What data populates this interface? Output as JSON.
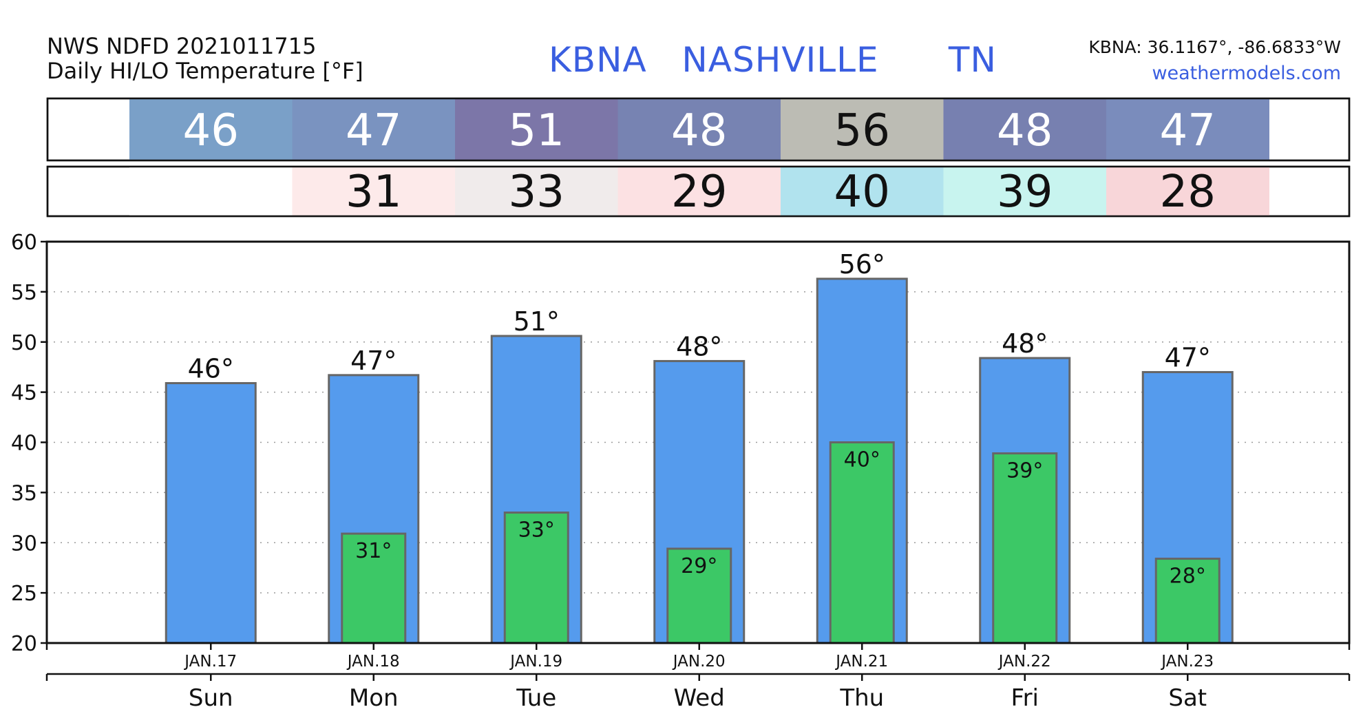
{
  "header": {
    "source_line": "NWS NDFD 2021011715",
    "product_line": "Daily HI/LO Temperature [°F]",
    "station": "KBNA   NASHVILLE      TN",
    "coords": "KBNA: 36.1167°, -86.6833°W",
    "site": "weathermodels.com"
  },
  "strips": {
    "hi_values": [
      "46",
      "47",
      "51",
      "48",
      "56",
      "48",
      "47"
    ],
    "hi_colors": [
      "#7aa0c8",
      "#7a93c0",
      "#7c76a8",
      "#7783b2",
      "#bcbcb4",
      "#7780b0",
      "#7a8cbc"
    ],
    "hi_text_colors": [
      "#ffffff",
      "#ffffff",
      "#ffffff",
      "#ffffff",
      "#111111",
      "#ffffff",
      "#ffffff"
    ],
    "lo_values": [
      "",
      "31",
      "33",
      "29",
      "40",
      "39",
      "28"
    ],
    "lo_colors": [
      "#ffffff",
      "#fdeaea",
      "#f0ebeb",
      "#fce1e3",
      "#b1e3ee",
      "#c8f4ef",
      "#f8d6d9"
    ],
    "lo_text_color": "#111111"
  },
  "chart_data": {
    "type": "bar",
    "categories": [
      "Sun",
      "Mon",
      "Tue",
      "Wed",
      "Thu",
      "Fri",
      "Sat"
    ],
    "dates": [
      "JAN.17",
      "JAN.18",
      "JAN.19",
      "JAN.20",
      "JAN.21",
      "JAN.22",
      "JAN.23"
    ],
    "series": [
      {
        "values": [
          45.9,
          46.7,
          50.6,
          48.1,
          56.3,
          48.4,
          47.0
        ],
        "labels": [
          "46°",
          "47°",
          "51°",
          "48°",
          "56°",
          "48°",
          "47°"
        ],
        "color": "#559bed"
      },
      {
        "values": [
          null,
          30.9,
          33.0,
          29.4,
          40.0,
          38.9,
          28.4
        ],
        "labels": [
          "",
          "31°",
          "33°",
          "29°",
          "40°",
          "39°",
          "28°"
        ],
        "color": "#3cc866"
      }
    ],
    "ylim": [
      20,
      60
    ],
    "yticks": [
      "20",
      "25",
      "30",
      "35",
      "40",
      "45",
      "50",
      "55",
      "60"
    ],
    "grid": true,
    "bar_outline_color": "#666666"
  }
}
